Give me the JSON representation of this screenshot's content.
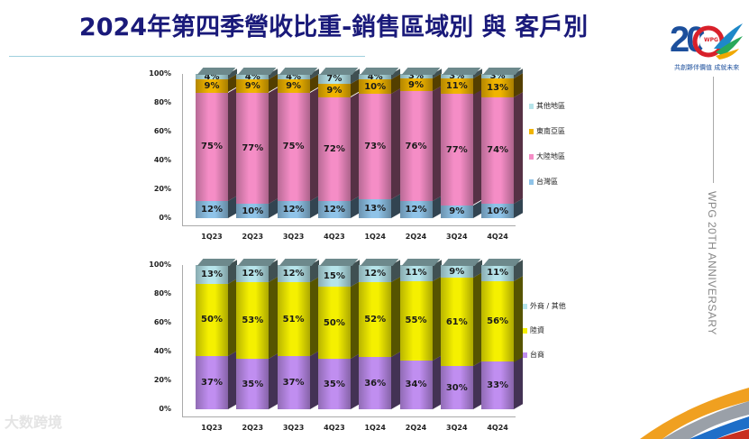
{
  "title": "2024年第四季營收比重-銷售區域別 與 客戶別",
  "logo": {
    "number": "20",
    "badge": "WPG",
    "tagline": "共創夥伴價值 成就未來"
  },
  "side_text": "WPG 20TH ANNIVERSARY",
  "watermark": "大数跨境",
  "chart_data": [
    {
      "type": "bar",
      "stacked": true,
      "percent": true,
      "title": "銷售區域別",
      "categories": [
        "1Q23",
        "2Q23",
        "3Q23",
        "4Q23",
        "1Q24",
        "2Q24",
        "3Q24",
        "4Q24"
      ],
      "yticks": [
        "100%",
        "80%",
        "60%",
        "40%",
        "20%",
        "0%"
      ],
      "ylim": [
        0,
        100
      ],
      "legend_position": "right",
      "series": [
        {
          "name": "台灣區",
          "color": "#8fc3e8",
          "values": [
            12,
            10,
            12,
            12,
            13,
            12,
            9,
            10
          ]
        },
        {
          "name": "大陸地區",
          "color": "#f58dc6",
          "values": [
            75,
            77,
            75,
            72,
            73,
            76,
            77,
            74
          ]
        },
        {
          "name": "東南亞區",
          "color": "#f0b400",
          "values": [
            9,
            9,
            9,
            9,
            10,
            9,
            11,
            13
          ]
        },
        {
          "name": "其他地區",
          "color": "#b6e4ea",
          "values": [
            4,
            4,
            4,
            7,
            4,
            3,
            3,
            3
          ]
        }
      ],
      "legend": [
        "其他地區",
        "東南亞區",
        "大陸地區",
        "台灣區"
      ]
    },
    {
      "type": "bar",
      "stacked": true,
      "percent": true,
      "title": "客戶別",
      "categories": [
        "1Q23",
        "2Q23",
        "3Q23",
        "4Q23",
        "1Q24",
        "2Q24",
        "3Q24",
        "4Q24"
      ],
      "yticks": [
        "100%",
        "80%",
        "60%",
        "40%",
        "20%",
        "0%"
      ],
      "ylim": [
        0,
        100
      ],
      "legend_position": "right",
      "series": [
        {
          "name": "台商",
          "color": "#c08ef0",
          "values": [
            37,
            35,
            37,
            35,
            36,
            34,
            30,
            33
          ]
        },
        {
          "name": "陸資",
          "color": "#f5f000",
          "values": [
            50,
            53,
            51,
            50,
            52,
            55,
            61,
            56
          ]
        },
        {
          "name": "外商 / 其他",
          "color": "#b6e4ea",
          "values": [
            13,
            12,
            12,
            15,
            12,
            11,
            9,
            11
          ]
        }
      ],
      "legend": [
        "外商 / 其他",
        "陸資",
        "台商"
      ]
    }
  ]
}
